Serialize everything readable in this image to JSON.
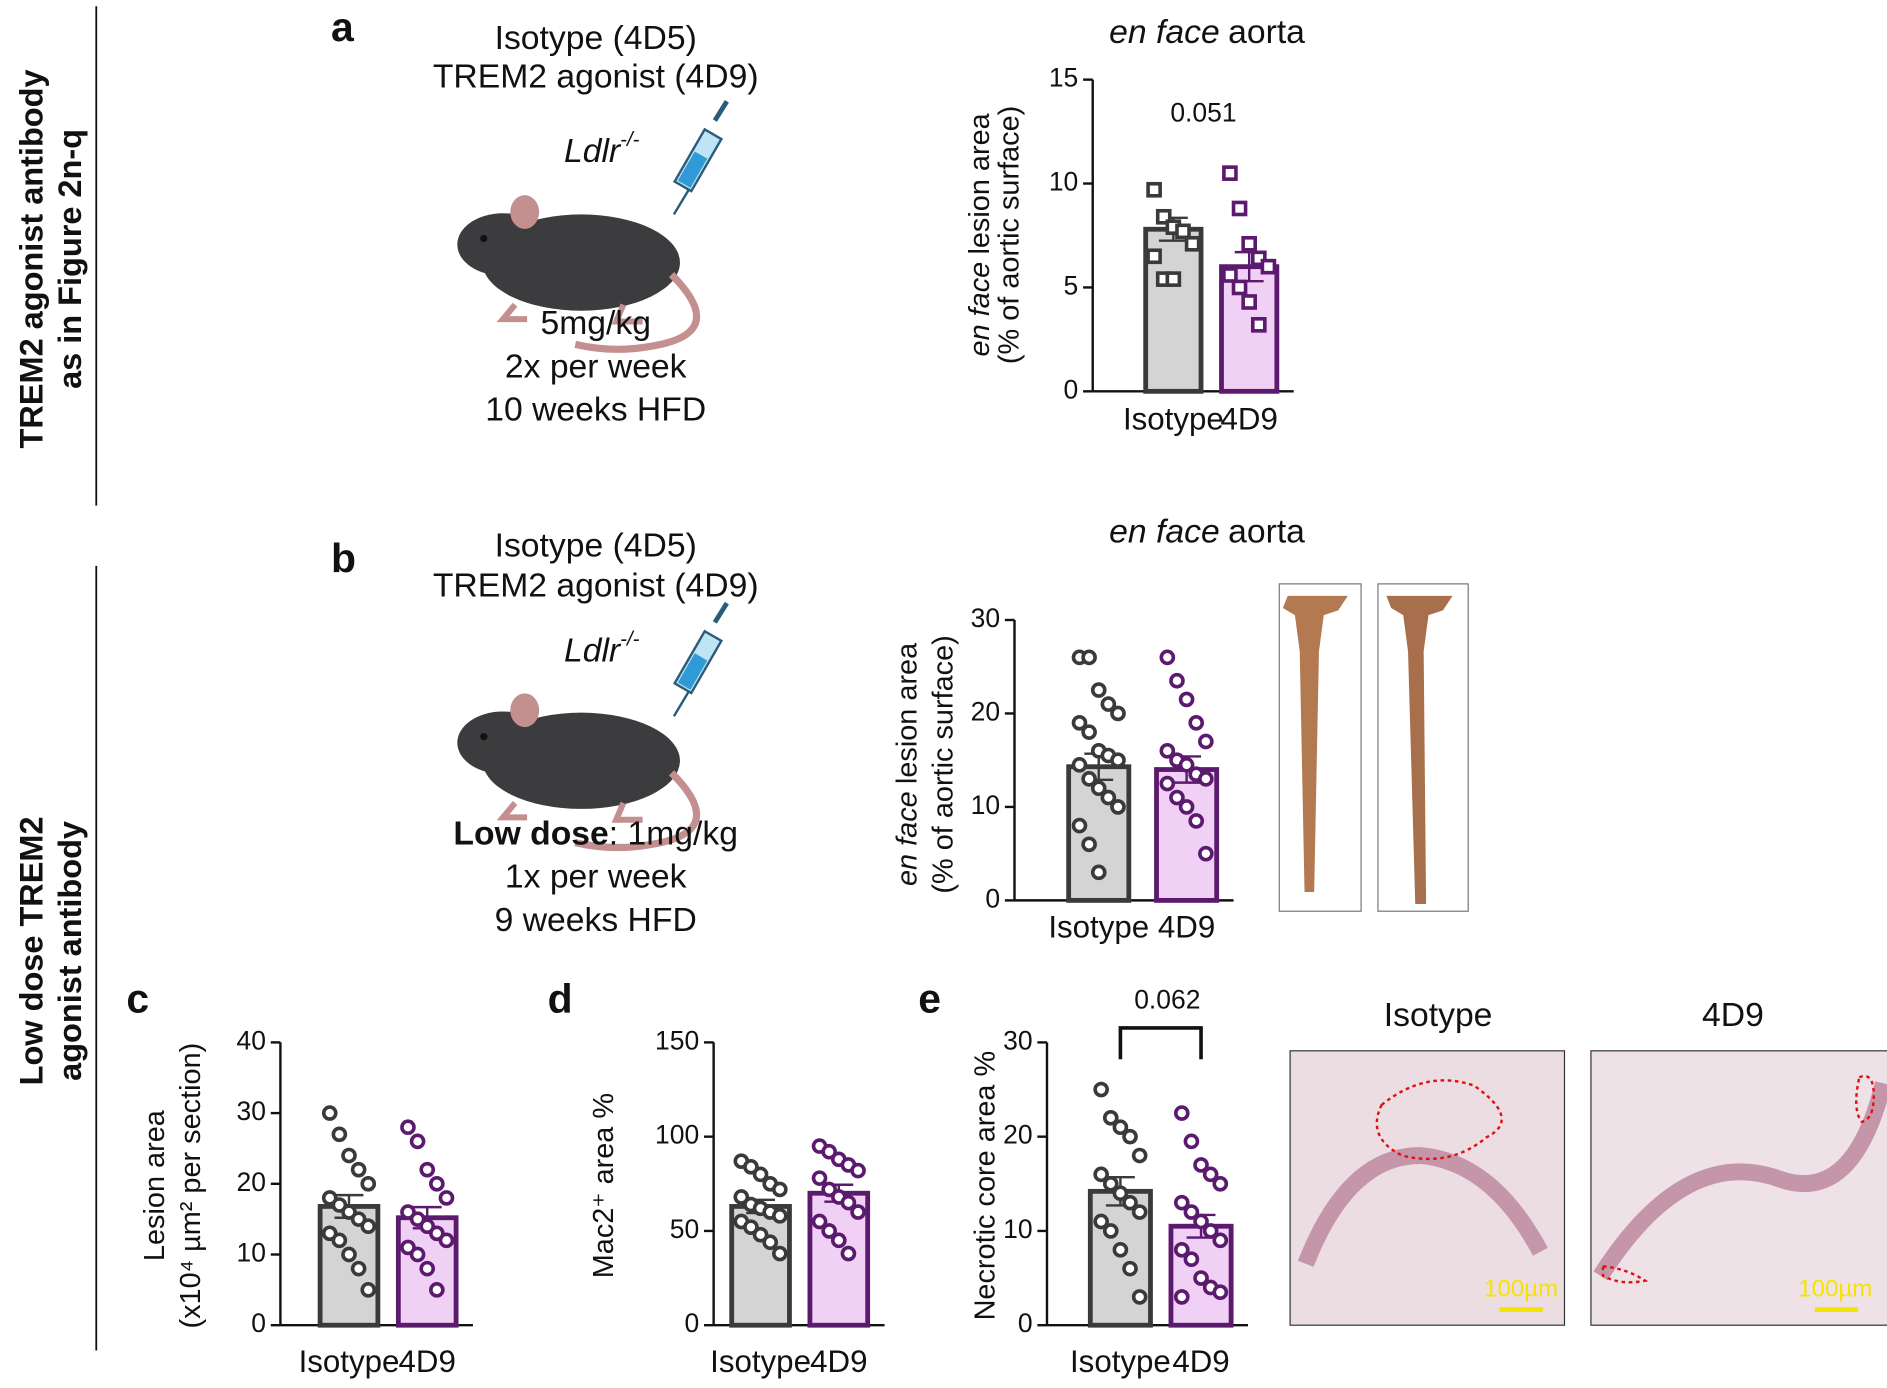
{
  "side_labels": [
    [
      "TREM2 agonist antibody",
      "as in Figure 2n-q"
    ],
    [
      "Low dose TREM2",
      "agonist antibody"
    ]
  ],
  "panel_letters": [
    "a",
    "b",
    "c",
    "d",
    "e"
  ],
  "schematics": [
    {
      "treatments": [
        "Isotype (4D5)",
        "TREM2 agonist (4D9)"
      ],
      "strain": "Ldlr",
      "strain_sup": "-/-",
      "dose_bold": null,
      "dose": "5mg/kg",
      "frequency": "2x per week",
      "duration": "10 weeks HFD"
    },
    {
      "treatments": [
        "Isotype (4D5)",
        "TREM2 agonist (4D9)"
      ],
      "strain": "Ldlr",
      "strain_sup": "-/-",
      "dose_bold": "Low dose",
      "dose": ": 1mg/kg",
      "frequency": "1x per week",
      "duration": "9 weeks HFD"
    }
  ],
  "histology": {
    "labels": [
      "Isotype",
      "4D9"
    ],
    "scale": "100µm"
  },
  "chart_data": [
    {
      "type": "bar",
      "title_italic": "en face",
      "title": "aorta",
      "ylabel_italic": "en face",
      "ylabel": [
        "lesion area",
        "(% of aortic surface)"
      ],
      "annotation": "0.051",
      "bracket": false,
      "categories": [
        "Isotype",
        "4D9"
      ],
      "values": [
        7.8,
        6.0
      ],
      "errors": [
        0.55,
        0.7
      ],
      "marker": "square",
      "points": [
        [
          9.7,
          8.4,
          7.9,
          7.7,
          7.1,
          6.5,
          5.4,
          5.4
        ],
        [
          10.5,
          8.8,
          7.1,
          6.4,
          6.0,
          5.6,
          5.0,
          4.3,
          3.2
        ]
      ],
      "colors": [
        "#d4d4d4",
        "#f1d0f5"
      ],
      "edge_colors": [
        "#3a3a3a",
        "#5b1a6e"
      ],
      "ylim": [
        0,
        15
      ],
      "yticks": [
        0,
        5,
        10,
        15
      ]
    },
    {
      "type": "bar",
      "title_italic": "en face",
      "title": "aorta",
      "ylabel_italic": "en face",
      "ylabel": [
        "lesion area",
        "(% of aortic surface)"
      ],
      "annotation": null,
      "bracket": false,
      "categories": [
        "Isotype",
        "4D9"
      ],
      "values": [
        14.3,
        14.0
      ],
      "errors": [
        1.4,
        1.4
      ],
      "marker": "circle",
      "points": [
        [
          26,
          26,
          22.5,
          21,
          20,
          19,
          18,
          16,
          15.5,
          15,
          14.5,
          13,
          12,
          11,
          10,
          8,
          6,
          3
        ],
        [
          26,
          23.5,
          21.5,
          19,
          17,
          16,
          15,
          14.5,
          13.5,
          13,
          12.5,
          11,
          10,
          8.5,
          5
        ]
      ],
      "colors": [
        "#d4d4d4",
        "#f1d0f5"
      ],
      "edge_colors": [
        "#3a3a3a",
        "#5b1a6e"
      ],
      "ylim": [
        0,
        30
      ],
      "yticks": [
        0,
        10,
        20,
        30
      ]
    },
    {
      "type": "bar",
      "title_italic": null,
      "title": null,
      "ylabel_italic": null,
      "ylabel": [
        "Lesion area",
        "(x10⁴ µm² per section)"
      ],
      "annotation": null,
      "bracket": false,
      "categories": [
        "Isotype",
        "4D9"
      ],
      "values": [
        16.8,
        15.2
      ],
      "errors": [
        1.6,
        1.5
      ],
      "marker": "circle",
      "points": [
        [
          30,
          27,
          24,
          22,
          20,
          18,
          17,
          16,
          15,
          14,
          13,
          12,
          10,
          8,
          5
        ],
        [
          28,
          26,
          22,
          20,
          18,
          16,
          15,
          14,
          13,
          12,
          11,
          10,
          8,
          5
        ]
      ],
      "colors": [
        "#d4d4d4",
        "#f1d0f5"
      ],
      "edge_colors": [
        "#3a3a3a",
        "#5b1a6e"
      ],
      "ylim": [
        0,
        40
      ],
      "yticks": [
        0,
        10,
        20,
        30,
        40
      ]
    },
    {
      "type": "bar",
      "title_italic": null,
      "title": null,
      "ylabel_italic": null,
      "ylabel": [
        "Mac2⁺ area %"
      ],
      "annotation": null,
      "bracket": false,
      "categories": [
        "Isotype",
        "4D9"
      ],
      "values": [
        63,
        70
      ],
      "errors": [
        3.5,
        4.5
      ],
      "marker": "circle",
      "points": [
        [
          87,
          84,
          80,
          75,
          72,
          68,
          64,
          62,
          60,
          58,
          55,
          52,
          48,
          44,
          38
        ],
        [
          95,
          92,
          88,
          85,
          82,
          78,
          72,
          68,
          65,
          60,
          55,
          50,
          45,
          38
        ]
      ],
      "colors": [
        "#d4d4d4",
        "#f1d0f5"
      ],
      "edge_colors": [
        "#3a3a3a",
        "#5b1a6e"
      ],
      "ylim": [
        0,
        150
      ],
      "yticks": [
        0,
        50,
        100,
        150
      ]
    },
    {
      "type": "bar",
      "title_italic": null,
      "title": null,
      "ylabel_italic": null,
      "ylabel": [
        "Necrotic core area %"
      ],
      "annotation": "0.062",
      "bracket": true,
      "categories": [
        "Isotype",
        "4D9"
      ],
      "values": [
        14.2,
        10.5
      ],
      "errors": [
        1.5,
        1.2
      ],
      "marker": "circle",
      "points": [
        [
          25,
          22,
          21,
          20,
          18,
          16,
          15,
          14,
          13,
          12,
          11,
          10,
          8,
          6,
          3
        ],
        [
          22.5,
          19.5,
          17,
          16,
          15,
          13,
          12,
          11,
          10,
          9,
          8,
          7,
          5,
          4,
          3.5,
          3
        ]
      ],
      "colors": [
        "#d4d4d4",
        "#f1d0f5"
      ],
      "edge_colors": [
        "#3a3a3a",
        "#5b1a6e"
      ],
      "ylim": [
        0,
        30
      ],
      "yticks": [
        0,
        10,
        20,
        30
      ]
    }
  ]
}
